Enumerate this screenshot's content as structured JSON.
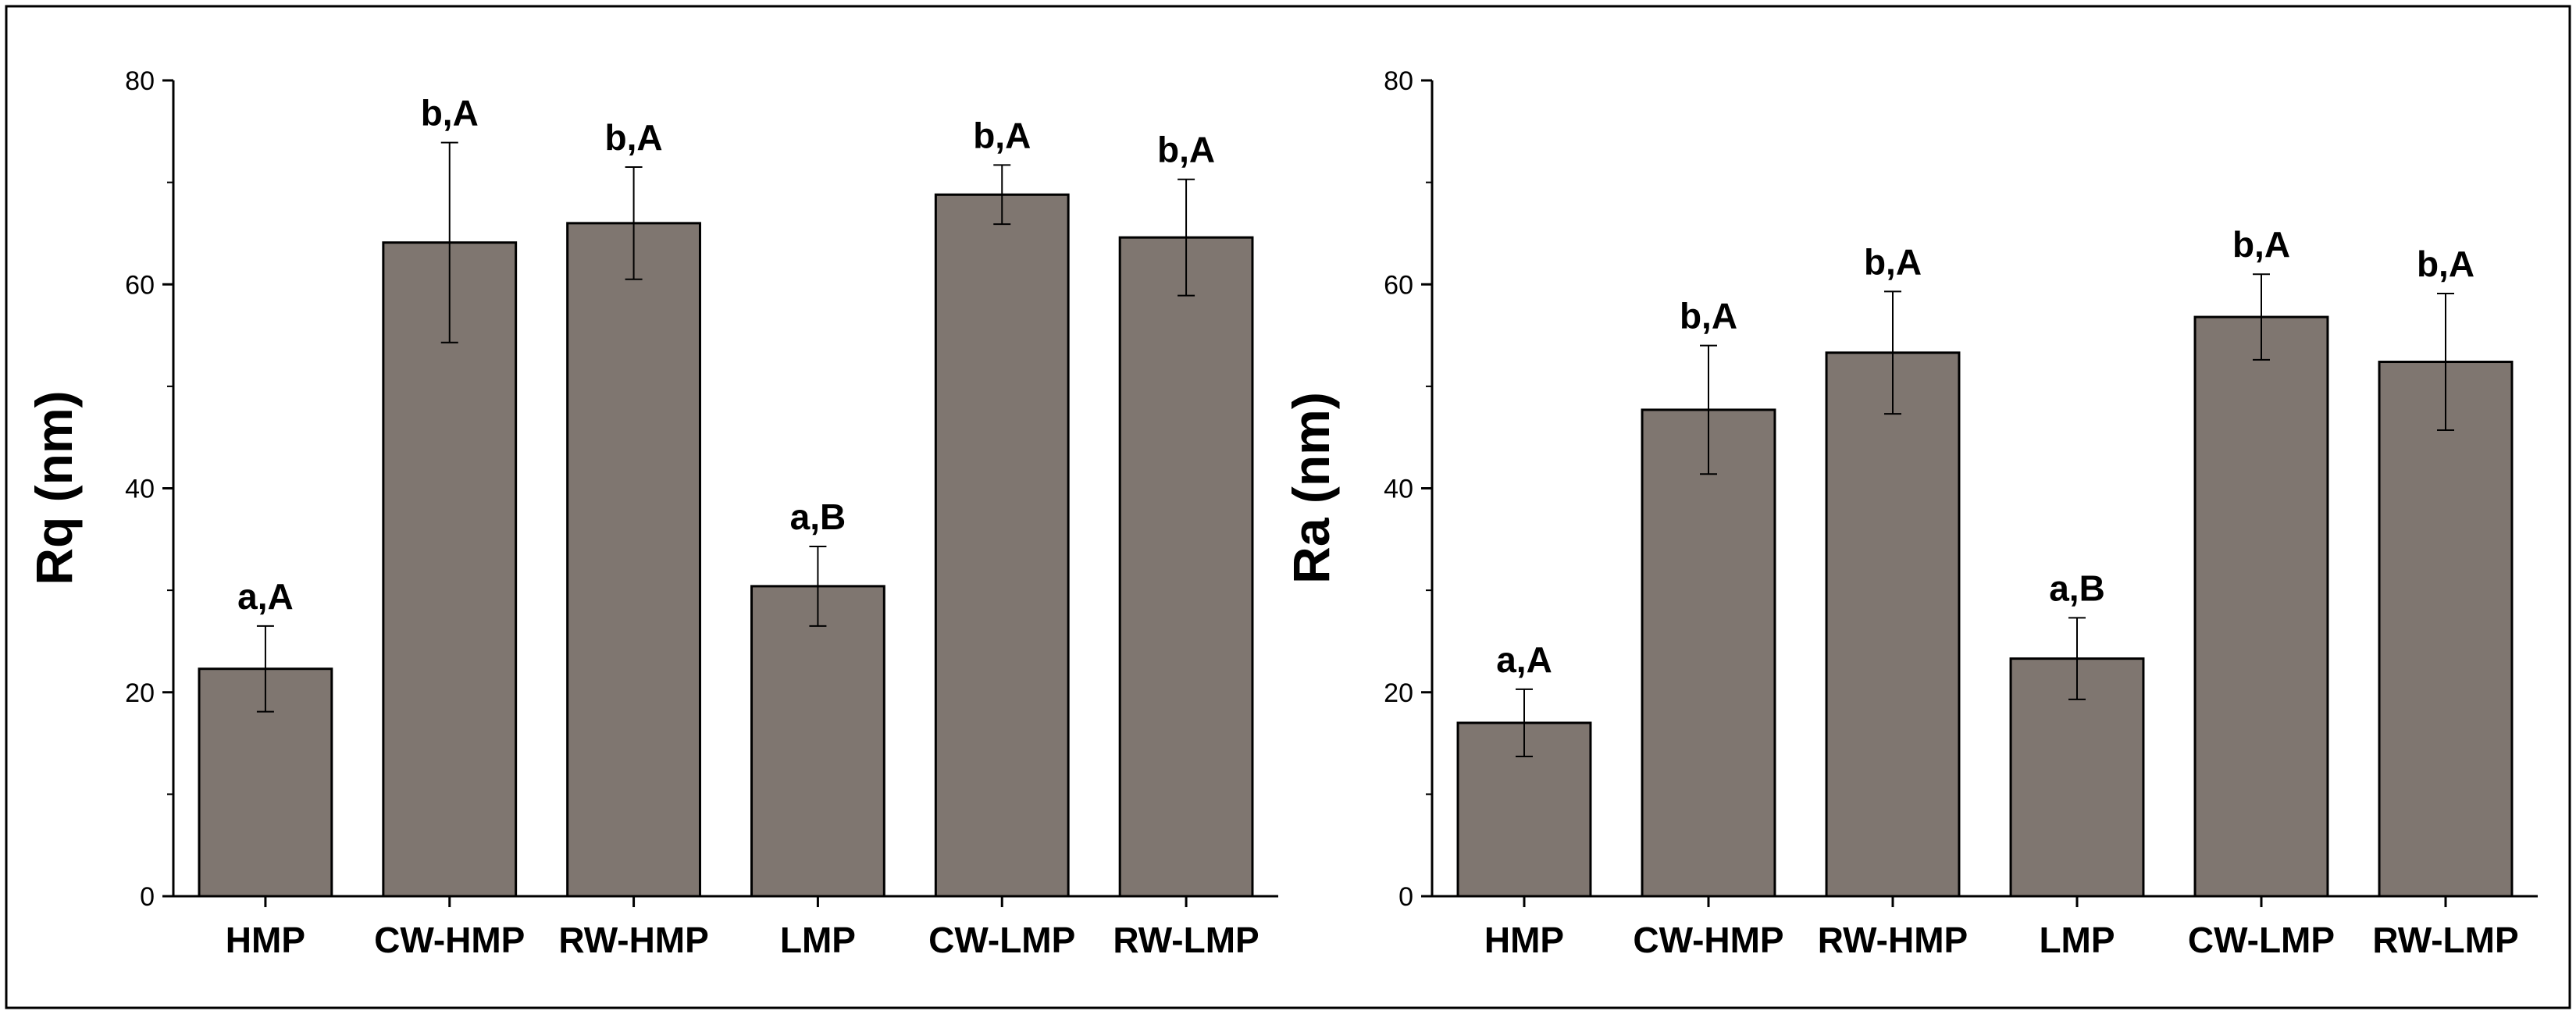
{
  "colors": {
    "bar": "#7f7670",
    "stroke": "#000000",
    "border": "#000000"
  },
  "chart_data": [
    {
      "type": "bar",
      "ylabel": "Rq (nm)",
      "ylim": [
        0,
        80
      ],
      "yticks": [
        "0",
        "20",
        "40",
        "60",
        "80"
      ],
      "categories": [
        "HMP",
        "CW-HMP",
        "RW-HMP",
        "LMP",
        "CW-LMP",
        "RW-LMP"
      ],
      "values": [
        22.3,
        64.1,
        66.0,
        30.4,
        68.8,
        64.6
      ],
      "errors": [
        4.2,
        9.8,
        5.5,
        3.9,
        2.9,
        5.7
      ],
      "annotations": [
        "a,A",
        "b,A",
        "b,A",
        "a,B",
        "b,A",
        "b,A"
      ]
    },
    {
      "type": "bar",
      "ylabel": "Ra (nm)",
      "ylim": [
        0,
        80
      ],
      "yticks": [
        "0",
        "20",
        "40",
        "60",
        "80"
      ],
      "categories": [
        "HMP",
        "CW-HMP",
        "RW-HMP",
        "LMP",
        "CW-LMP",
        "RW-LMP"
      ],
      "values": [
        17.0,
        47.7,
        53.3,
        23.3,
        56.8,
        52.4
      ],
      "errors": [
        3.3,
        6.3,
        6.0,
        4.0,
        4.2,
        6.7
      ],
      "annotations": [
        "a,A",
        "b,A",
        "b,A",
        "a,B",
        "b,A",
        "b,A"
      ]
    }
  ]
}
